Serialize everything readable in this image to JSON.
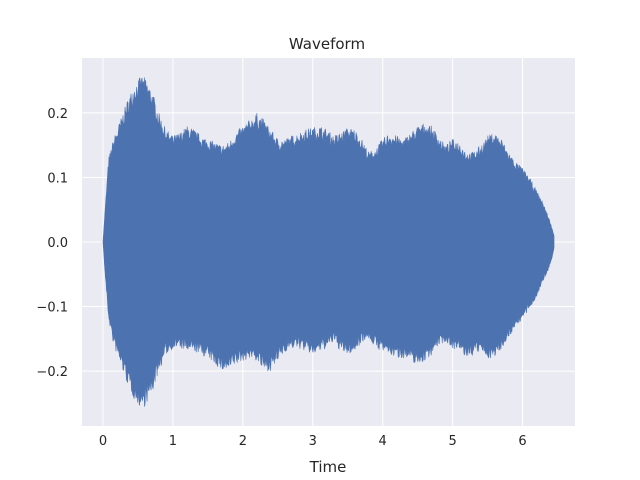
{
  "chart_data": {
    "type": "area",
    "title": "Waveform",
    "xlabel": "Time",
    "ylabel": "",
    "xlim": [
      -0.3,
      6.75
    ],
    "ylim": [
      -0.285,
      0.285
    ],
    "xticks": [
      0,
      1,
      2,
      3,
      4,
      5,
      6
    ],
    "yticks": [
      -0.2,
      -0.1,
      0.0,
      0.1,
      0.2
    ],
    "ytick_labels": [
      "−0.2",
      "−0.1",
      "0.0",
      "0.1",
      "0.2"
    ],
    "grid": true,
    "colors": {
      "background": "#eaeaf2",
      "grid": "#ffffff",
      "series": "#4c72b0",
      "text": "#262626"
    },
    "series": [
      {
        "name": "",
        "x": [
          0.0,
          0.03,
          0.08,
          0.15,
          0.25,
          0.35,
          0.45,
          0.55,
          0.6,
          0.7,
          0.8,
          0.9,
          1.0,
          1.1,
          1.2,
          1.3,
          1.4,
          1.5,
          1.6,
          1.7,
          1.8,
          1.9,
          2.0,
          2.1,
          2.2,
          2.3,
          2.4,
          2.5,
          2.6,
          2.7,
          2.8,
          2.9,
          3.0,
          3.1,
          3.2,
          3.3,
          3.4,
          3.5,
          3.6,
          3.7,
          3.8,
          3.9,
          4.0,
          4.1,
          4.2,
          4.3,
          4.4,
          4.5,
          4.6,
          4.7,
          4.8,
          4.9,
          5.0,
          5.1,
          5.2,
          5.3,
          5.4,
          5.5,
          5.6,
          5.7,
          5.8,
          5.9,
          6.0,
          6.1,
          6.2,
          6.3,
          6.4,
          6.45
        ],
        "upper": [
          0.0,
          0.05,
          0.13,
          0.16,
          0.19,
          0.22,
          0.245,
          0.258,
          0.255,
          0.235,
          0.2,
          0.175,
          0.165,
          0.17,
          0.18,
          0.175,
          0.165,
          0.16,
          0.155,
          0.15,
          0.155,
          0.17,
          0.18,
          0.19,
          0.2,
          0.19,
          0.175,
          0.16,
          0.16,
          0.165,
          0.17,
          0.175,
          0.178,
          0.18,
          0.175,
          0.165,
          0.17,
          0.178,
          0.175,
          0.16,
          0.14,
          0.145,
          0.16,
          0.17,
          0.165,
          0.16,
          0.17,
          0.18,
          0.185,
          0.18,
          0.165,
          0.15,
          0.16,
          0.155,
          0.14,
          0.14,
          0.15,
          0.165,
          0.17,
          0.16,
          0.14,
          0.125,
          0.115,
          0.1,
          0.08,
          0.06,
          0.03,
          0.01
        ],
        "lower": [
          0.0,
          -0.05,
          -0.12,
          -0.16,
          -0.19,
          -0.22,
          -0.245,
          -0.258,
          -0.255,
          -0.235,
          -0.2,
          -0.175,
          -0.165,
          -0.165,
          -0.17,
          -0.17,
          -0.175,
          -0.18,
          -0.19,
          -0.2,
          -0.2,
          -0.19,
          -0.185,
          -0.18,
          -0.185,
          -0.2,
          -0.2,
          -0.185,
          -0.17,
          -0.165,
          -0.165,
          -0.17,
          -0.175,
          -0.17,
          -0.165,
          -0.155,
          -0.17,
          -0.175,
          -0.17,
          -0.155,
          -0.15,
          -0.165,
          -0.17,
          -0.175,
          -0.18,
          -0.18,
          -0.185,
          -0.19,
          -0.185,
          -0.175,
          -0.16,
          -0.155,
          -0.165,
          -0.17,
          -0.18,
          -0.175,
          -0.17,
          -0.18,
          -0.18,
          -0.165,
          -0.15,
          -0.13,
          -0.12,
          -0.105,
          -0.085,
          -0.06,
          -0.035,
          -0.01
        ]
      }
    ]
  }
}
